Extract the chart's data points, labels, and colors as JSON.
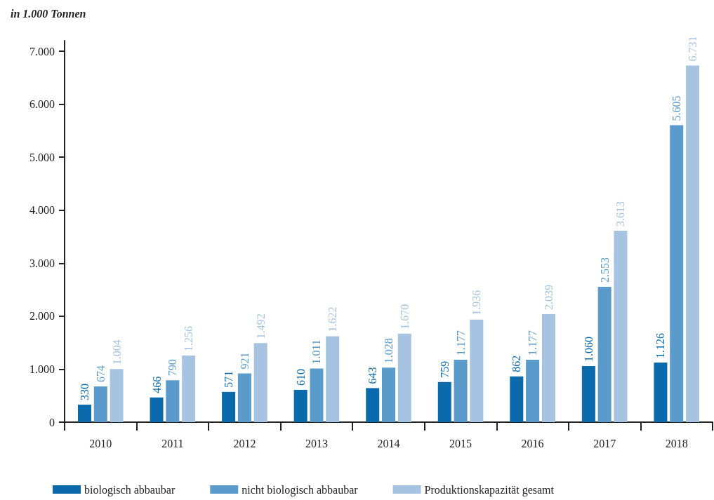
{
  "chart_data": {
    "type": "bar",
    "ylabel": "in 1.000 Tonnen",
    "categories": [
      "2010",
      "2011",
      "2012",
      "2013",
      "2014",
      "2015",
      "2016",
      "2017",
      "2018"
    ],
    "series": [
      {
        "name": "biologisch abbaubar",
        "color": "#0a6aab",
        "values": [
          330,
          466,
          571,
          610,
          643,
          759,
          862,
          1060,
          1126
        ],
        "value_labels": [
          "330",
          "466",
          "571",
          "610",
          "643",
          "759",
          "862",
          "1.060",
          "1.126"
        ]
      },
      {
        "name": "nicht biologisch abbaubar",
        "color": "#5b9bcb",
        "values": [
          674,
          790,
          921,
          1011,
          1028,
          1177,
          1177,
          2553,
          5605
        ],
        "value_labels": [
          "674",
          "790",
          "921",
          "1.011",
          "1.028",
          "1.177",
          "1.177",
          "2.553",
          "5.605"
        ]
      },
      {
        "name": "Produktionskapazität gesamt",
        "color": "#a6c4e1",
        "values": [
          1004,
          1256,
          1492,
          1622,
          1670,
          1936,
          2039,
          3613,
          6731
        ],
        "value_labels": [
          "1.004",
          "1.256",
          "1.492",
          "1.622",
          "1.670",
          "1.936",
          "2.039",
          "3.613",
          "6.731"
        ]
      }
    ],
    "ylim": [
      0,
      7200
    ],
    "yticks": [
      {
        "value": 0,
        "label": "0"
      },
      {
        "value": 1000,
        "label": "1.000"
      },
      {
        "value": 2000,
        "label": "2.000"
      },
      {
        "value": 3000,
        "label": "3.000"
      },
      {
        "value": 4000,
        "label": "4.000"
      },
      {
        "value": 5000,
        "label": "5.000"
      },
      {
        "value": 6000,
        "label": "6.000"
      },
      {
        "value": 7000,
        "label": "7.000"
      }
    ],
    "grid": false,
    "legend": "bottom left"
  }
}
